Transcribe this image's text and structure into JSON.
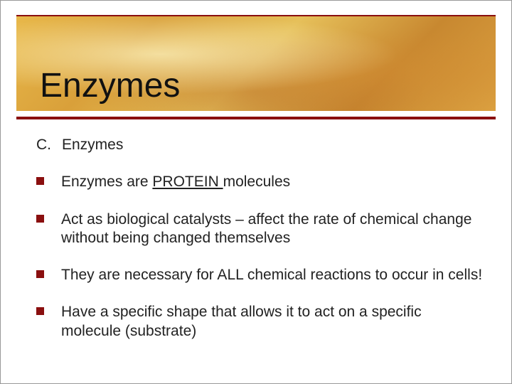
{
  "slide": {
    "title": "Enzymes",
    "outline": {
      "label": "C.",
      "text": "Enzymes"
    },
    "bullets": [
      {
        "pre": "Enzymes are ",
        "underlined": "PROTEIN ",
        "post": "molecules"
      },
      {
        "text": "Act as biological catalysts – affect the rate of chemical change without being changed themselves"
      },
      {
        "text": "They are necessary for ALL chemical reactions to occur in cells!"
      },
      {
        "text": "Have a specific shape that allows it to act on a specific molecule (substrate)"
      }
    ]
  },
  "style": {
    "accent_color": "#8a0f0f",
    "background_color": "#ffffff",
    "title_fontsize": 48,
    "body_fontsize": 21,
    "bullet_size": 11,
    "header_gradient": [
      "#e8b84a",
      "#d9a03a",
      "#e6c05a",
      "#c88830",
      "#dba040"
    ]
  }
}
